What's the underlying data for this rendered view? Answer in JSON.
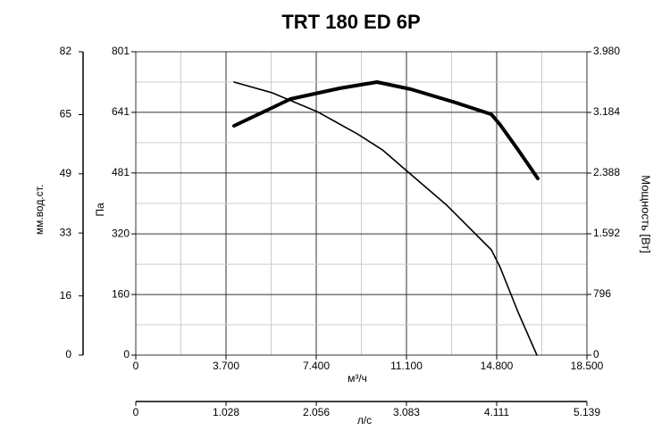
{
  "chart_data": {
    "type": "line",
    "title": "TRT 180 ED 6P",
    "xlabel": "м³/ч",
    "ylabel": "Па",
    "y2label": "Мощность [Вт]",
    "y3label": "мм.вод.ст.",
    "x2label": "л/с",
    "xlim": [
      0,
      18500
    ],
    "xticks": [
      0,
      {
        "value": 3700,
        "label": "3.700"
      },
      {
        "value": 7400,
        "label": "7.400"
      },
      {
        "value": 11100,
        "label": "11.100"
      },
      {
        "value": 14800,
        "label": "14.800"
      },
      {
        "value": 18500,
        "label": "18.500"
      }
    ],
    "x2lim": [
      0,
      5139
    ],
    "x2ticks": [
      0,
      {
        "value": 1028,
        "label": "1.028"
      },
      {
        "value": 2056,
        "label": "2.056"
      },
      {
        "value": 3083,
        "label": "3.083"
      },
      {
        "value": 4111,
        "label": "4.111"
      },
      {
        "value": 5139,
        "label": "5.139"
      }
    ],
    "ylim": [
      0,
      801
    ],
    "yticks": [
      0,
      160,
      320,
      481,
      641,
      801
    ],
    "y2lim": [
      0,
      3980
    ],
    "y2ticks": [
      0,
      796,
      {
        "value": 1592,
        "label": "1.592"
      },
      {
        "value": 2388,
        "label": "2.388"
      },
      {
        "value": 3184,
        "label": "3.184"
      },
      {
        "value": 3980,
        "label": "3.980"
      }
    ],
    "y3lim": [
      0,
      82
    ],
    "y3ticks": [
      0,
      16,
      33,
      49,
      65,
      82
    ],
    "grid": true,
    "series": [
      {
        "color": "#000000",
        "width": 1.6,
        "x": [
          4030,
          5570,
          7437,
          9085,
          10110,
          11137,
          12750,
          14580,
          14946,
          15680,
          16450
        ],
        "values": [
          721,
          693,
          643,
          584,
          542,
          485,
          396,
          278,
          231,
          113,
          0
        ]
      },
      {
        "color": "#000000",
        "width": 4,
        "axis": "y2",
        "x": [
          4030,
          5497,
          6338,
          8352,
          9890,
          11283,
          13115,
          14580,
          14946,
          15680,
          16485
        ],
        "values": [
          3008,
          3231,
          3360,
          3500,
          3582,
          3488,
          3313,
          3160,
          3020,
          2692,
          2318
        ]
      }
    ]
  }
}
